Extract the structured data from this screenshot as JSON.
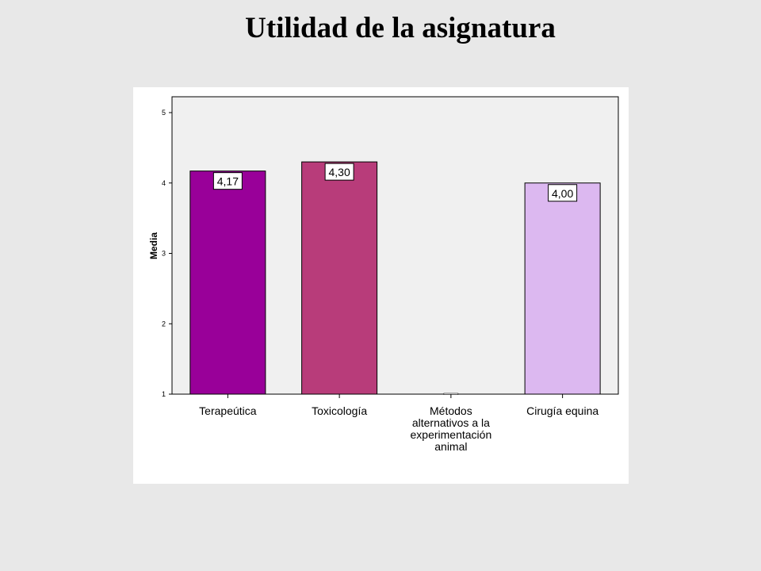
{
  "slide": {
    "title": "Utilidad de la asignatura"
  },
  "chart_data": {
    "type": "bar",
    "title": "",
    "xlabel": "",
    "ylabel": "Media",
    "ylim": [
      1,
      5
    ],
    "yticks": [
      1,
      2,
      3,
      4,
      5
    ],
    "categories": [
      "Terapeútica",
      "Toxicología",
      "Métodos alternativos a la experimentación animal",
      "Cirugía equina"
    ],
    "category_lines": [
      [
        "Terapeútica"
      ],
      [
        "Toxicología"
      ],
      [
        "Métodos",
        "alternativos a la",
        "experimentación",
        "animal"
      ],
      [
        "Cirugía equina"
      ]
    ],
    "values": [
      4.17,
      4.3,
      null,
      4.0
    ],
    "value_labels": [
      "4,17",
      "4,30",
      "",
      "4,00"
    ],
    "colors": [
      "#990099",
      "#b83c7a",
      "#b83c7a",
      "#dcb8f0"
    ],
    "plot_background": "#f0f0f0",
    "grid": false,
    "legend": "none"
  }
}
